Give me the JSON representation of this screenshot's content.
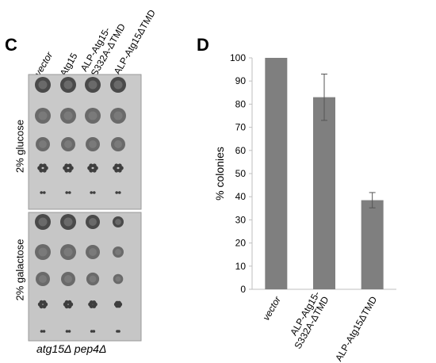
{
  "panel_c": {
    "letter": "C",
    "columns": [
      "vector",
      "Atg15",
      "ALP-Atg15-",
      "S332A-ΔTMD",
      "ALP-Atg15ΔTMD"
    ],
    "rows": [
      "2% glucose",
      "2% galactose"
    ],
    "strain": "atg15Δ pep4Δ"
  },
  "panel_d": {
    "letter": "D"
  },
  "chart_data": {
    "type": "bar",
    "categories": [
      "vector",
      "ALP-Atg15-\nS332A-ΔTMD",
      "ALP-Atg15ΔTMD"
    ],
    "category_lines": [
      [
        "vector"
      ],
      [
        "ALP-Atg15-",
        "S332A-ΔTMD"
      ],
      [
        "ALP-Atg15ΔTMD"
      ]
    ],
    "values": [
      100,
      83,
      38.5
    ],
    "errors": [
      0,
      10,
      3.3
    ],
    "ylabel": "% colonies",
    "xlabel": "",
    "ylim": [
      0,
      100
    ],
    "yticks": [
      0,
      10,
      20,
      30,
      40,
      50,
      60,
      70,
      80,
      90,
      100
    ],
    "bar_color": "#7f7f7f",
    "grid": false
  }
}
